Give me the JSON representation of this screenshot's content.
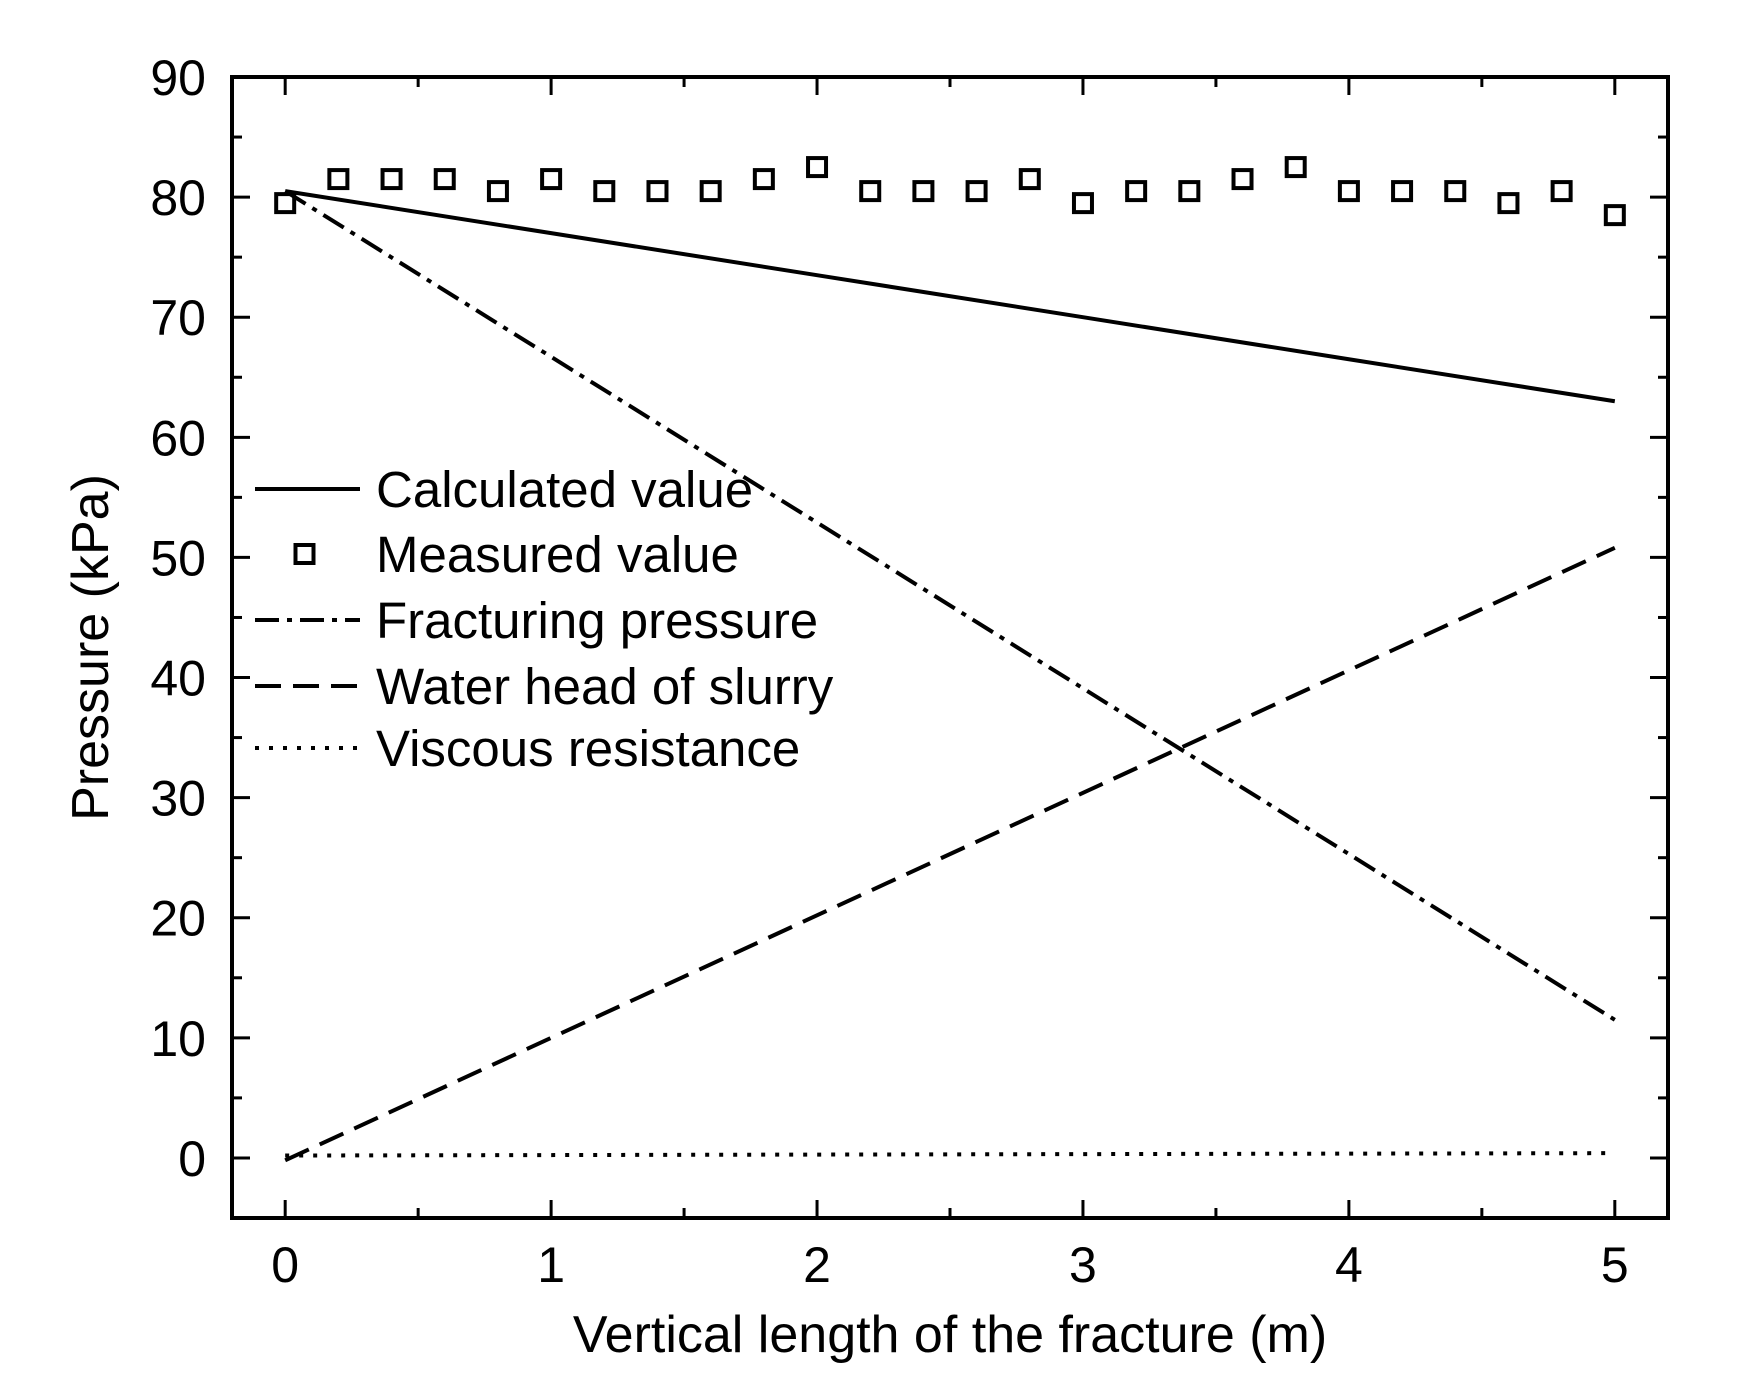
{
  "chart_data": {
    "type": "line",
    "title": "",
    "xlabel": "Vertical length of the fracture (m)",
    "ylabel": "Pressure (kPa)",
    "xlim": [
      -0.2,
      5.2
    ],
    "ylim": [
      -5,
      90
    ],
    "x_ticks": [
      0,
      1,
      2,
      3,
      4,
      5
    ],
    "y_ticks": [
      0,
      10,
      20,
      30,
      40,
      50,
      60,
      70,
      80,
      90
    ],
    "grid": false,
    "legend_position": "center-left",
    "series": [
      {
        "name": "Calculated value",
        "style": "solid",
        "points": [
          [
            0,
            80.5
          ],
          [
            1,
            77.0
          ],
          [
            2,
            73.5
          ],
          [
            3,
            70.0
          ],
          [
            4,
            66.5
          ],
          [
            5,
            63.0
          ]
        ]
      },
      {
        "name": "Measured value",
        "style": "square-markers",
        "points": [
          [
            0,
            79.5
          ],
          [
            0.2,
            81.5
          ],
          [
            0.4,
            81.5
          ],
          [
            0.6,
            81.5
          ],
          [
            0.8,
            80.5
          ],
          [
            1.0,
            81.5
          ],
          [
            1.2,
            80.5
          ],
          [
            1.4,
            80.5
          ],
          [
            1.6,
            80.5
          ],
          [
            1.8,
            81.5
          ],
          [
            2.0,
            82.5
          ],
          [
            2.2,
            80.5
          ],
          [
            2.4,
            80.5
          ],
          [
            2.6,
            80.5
          ],
          [
            2.8,
            81.5
          ],
          [
            3.0,
            79.5
          ],
          [
            3.2,
            80.5
          ],
          [
            3.4,
            80.5
          ],
          [
            3.6,
            81.5
          ],
          [
            3.8,
            82.5
          ],
          [
            4.0,
            80.5
          ],
          [
            4.2,
            80.5
          ],
          [
            4.4,
            80.5
          ],
          [
            4.6,
            79.5
          ],
          [
            4.8,
            80.5
          ],
          [
            5.0,
            78.5
          ]
        ]
      },
      {
        "name": "Fracturing pressure",
        "style": "dash-dot",
        "points": [
          [
            0,
            80.5
          ],
          [
            5,
            11.5
          ]
        ]
      },
      {
        "name": "Water head of slurry",
        "style": "dashed",
        "points": [
          [
            0,
            -0.2
          ],
          [
            5,
            50.8
          ]
        ]
      },
      {
        "name": "Viscous resistance",
        "style": "dotted",
        "points": [
          [
            0,
            0.2
          ],
          [
            5,
            0.4
          ]
        ]
      }
    ]
  }
}
